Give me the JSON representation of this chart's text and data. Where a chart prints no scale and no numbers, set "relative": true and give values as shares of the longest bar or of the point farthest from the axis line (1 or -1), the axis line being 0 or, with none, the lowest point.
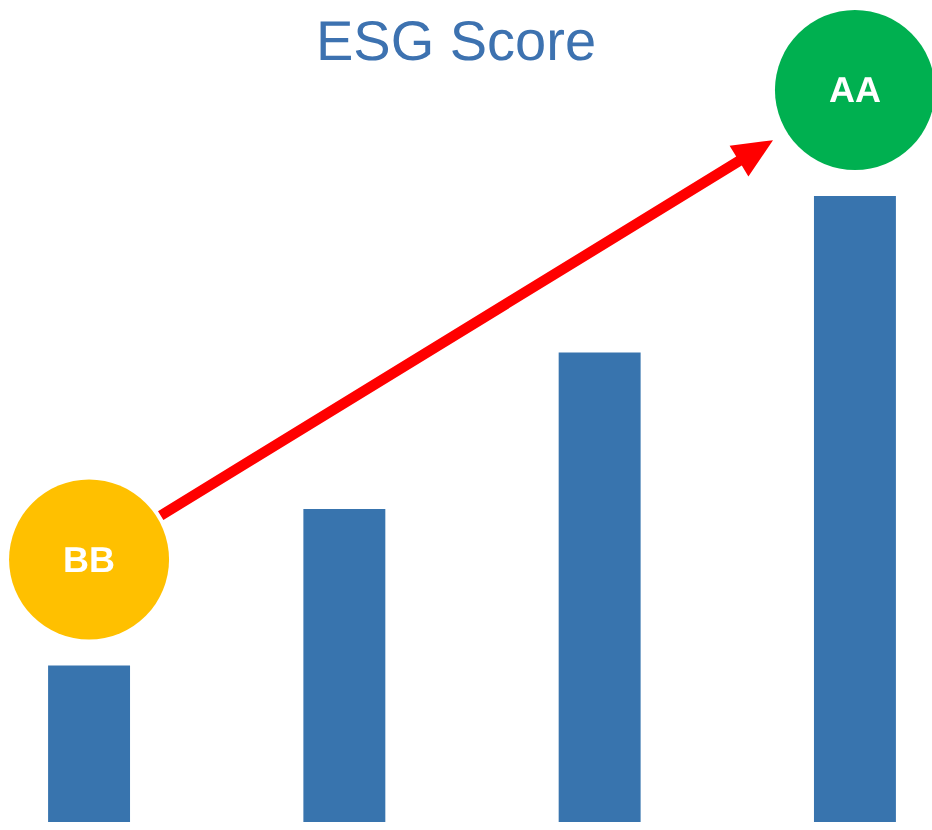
{
  "chart_data": {
    "type": "bar",
    "title": "ESG Score",
    "categories": [
      null,
      null,
      null,
      null
    ],
    "values": [
      0.25,
      0.5,
      0.75,
      1
    ],
    "color": "#3874ae",
    "relative": true,
    "annotations": [
      "BB",
      "AA"
    ]
  }
}
